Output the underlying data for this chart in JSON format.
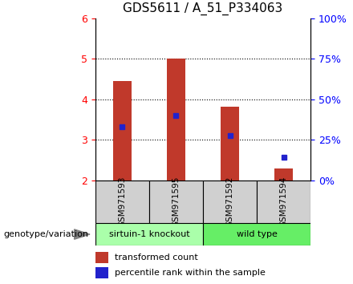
{
  "title": "GDS5611 / A_51_P334063",
  "samples": [
    "GSM971593",
    "GSM971595",
    "GSM971592",
    "GSM971594"
  ],
  "transformed_counts": [
    4.45,
    5.0,
    3.82,
    2.3
  ],
  "percentile_ranks": [
    3.32,
    3.6,
    3.1,
    2.57
  ],
  "ylim": [
    2.0,
    6.0
  ],
  "yticks_left": [
    2,
    3,
    4,
    5,
    6
  ],
  "yticks_right": [
    0,
    25,
    50,
    75,
    100
  ],
  "bar_color": "#c0392b",
  "dot_color": "#2222cc",
  "groups": [
    {
      "label": "sirtuin-1 knockout",
      "indices": [
        0,
        1
      ],
      "color": "#aaffaa"
    },
    {
      "label": "wild type",
      "indices": [
        2,
        3
      ],
      "color": "#66ee66"
    }
  ],
  "group_bg_color": "#d0d0d0",
  "legend_red_label": "transformed count",
  "legend_blue_label": "percentile rank within the sample",
  "genotype_label": "genotype/variation",
  "title_fontsize": 11,
  "tick_fontsize": 9,
  "bar_width": 0.35
}
